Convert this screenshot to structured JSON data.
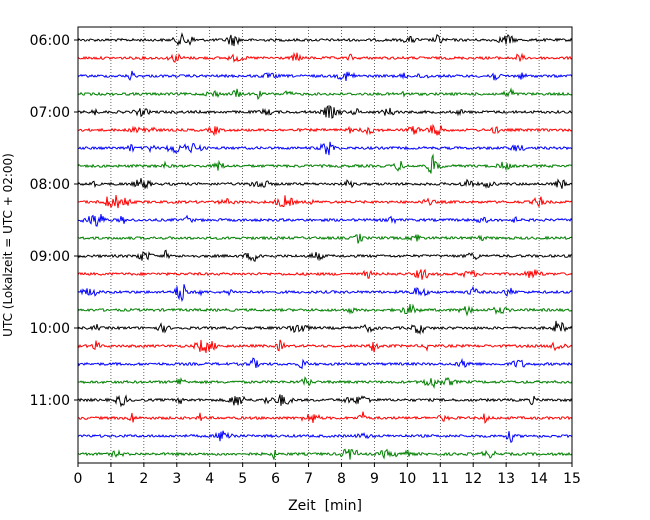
{
  "chart_data": {
    "type": "line",
    "title": "",
    "xlabel": "Zeit  [min]",
    "ylabel": "UTC (Lokalzeit = UTC + 02:00)",
    "xlim": [
      0,
      15
    ],
    "x_ticks": [
      "0",
      "1",
      "2",
      "3",
      "4",
      "5",
      "6",
      "7",
      "8",
      "9",
      "10",
      "11",
      "12",
      "13",
      "14",
      "15"
    ],
    "y_tick_labels": [
      "06:00",
      "07:00",
      "08:00",
      "09:00",
      "10:00",
      "11:00"
    ],
    "row_interval_minutes": 15,
    "start_time": "06:00",
    "grid": "vertical dotted lines at each minute",
    "colors": [
      "#000000",
      "#ff0000",
      "#0000ff",
      "#008000"
    ],
    "series": [
      {
        "time": "06:00",
        "color": "#000000"
      },
      {
        "time": "06:15",
        "color": "#ff0000"
      },
      {
        "time": "06:30",
        "color": "#0000ff"
      },
      {
        "time": "06:45",
        "color": "#008000"
      },
      {
        "time": "07:00",
        "color": "#000000"
      },
      {
        "time": "07:15",
        "color": "#ff0000"
      },
      {
        "time": "07:30",
        "color": "#0000ff"
      },
      {
        "time": "07:45",
        "color": "#008000"
      },
      {
        "time": "08:00",
        "color": "#000000"
      },
      {
        "time": "08:15",
        "color": "#ff0000"
      },
      {
        "time": "08:30",
        "color": "#0000ff"
      },
      {
        "time": "08:45",
        "color": "#008000"
      },
      {
        "time": "09:00",
        "color": "#000000"
      },
      {
        "time": "09:15",
        "color": "#ff0000"
      },
      {
        "time": "09:30",
        "color": "#0000ff"
      },
      {
        "time": "09:45",
        "color": "#008000"
      },
      {
        "time": "10:00",
        "color": "#000000"
      },
      {
        "time": "10:15",
        "color": "#ff0000"
      },
      {
        "time": "10:30",
        "color": "#0000ff"
      },
      {
        "time": "10:45",
        "color": "#008000"
      },
      {
        "time": "11:00",
        "color": "#000000"
      },
      {
        "time": "11:15",
        "color": "#ff0000"
      },
      {
        "time": "11:30",
        "color": "#0000ff"
      },
      {
        "time": "11:45",
        "color": "#008000"
      }
    ]
  }
}
